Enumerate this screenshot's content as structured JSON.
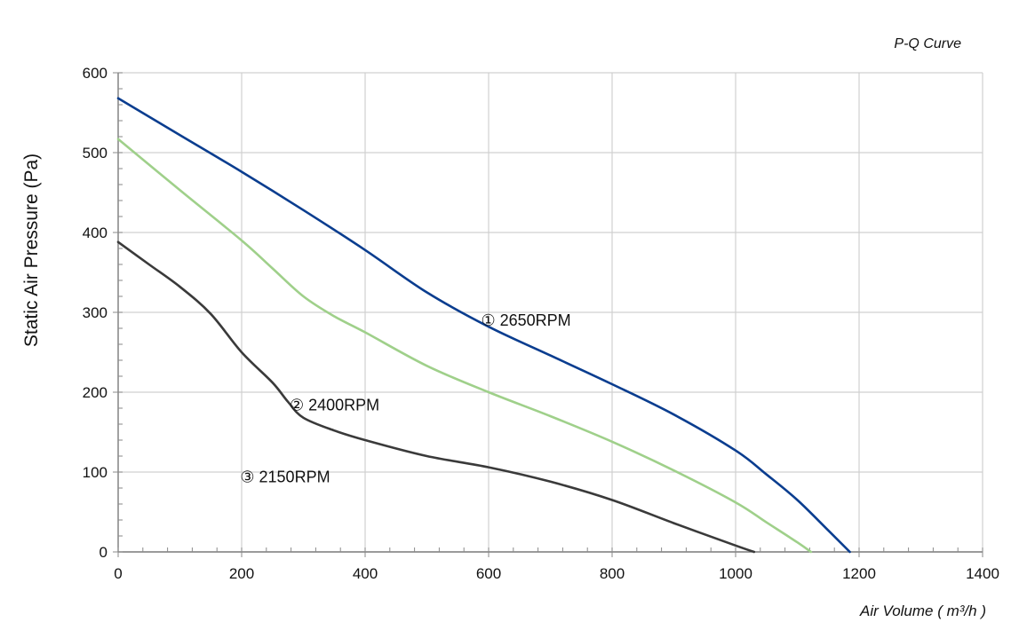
{
  "chart_data": {
    "type": "line",
    "title": "P-Q Curve",
    "xlabel": "Air Volume ( m³/h )",
    "ylabel": "Static Air Pressure  (Pa)",
    "xlim": [
      0,
      1400
    ],
    "ylim": [
      0,
      600
    ],
    "x_ticks": [
      0,
      200,
      400,
      600,
      800,
      1000,
      1200,
      1400
    ],
    "y_ticks": [
      0,
      100,
      200,
      300,
      400,
      500,
      600
    ],
    "x_tick_labels": [
      "0",
      "200",
      "400",
      "600",
      "800",
      "1000",
      "1200",
      "1400"
    ],
    "y_tick_labels": [
      "0",
      "100",
      "200",
      "300",
      "400",
      "500",
      "600"
    ],
    "grid": true,
    "legend": "none",
    "series": [
      {
        "color": "#0a3d8f",
        "x": [
          0,
          100,
          200,
          300,
          400,
          500,
          600,
          700,
          800,
          900,
          1000,
          1050,
          1100,
          1150,
          1185
        ],
        "y": [
          568,
          522,
          476,
          428,
          378,
          325,
          282,
          246,
          210,
          172,
          127,
          97,
          65,
          27,
          0
        ]
      },
      {
        "color": "#9fd08a",
        "x": [
          0,
          100,
          200,
          250,
          300,
          350,
          400,
          500,
          600,
          700,
          800,
          900,
          1000,
          1050,
          1100,
          1122
        ],
        "y": [
          517,
          453,
          390,
          355,
          320,
          295,
          275,
          233,
          200,
          170,
          138,
          102,
          62,
          37,
          12,
          0
        ]
      },
      {
        "color": "#3a3a3a",
        "x": [
          0,
          50,
          100,
          150,
          200,
          250,
          275,
          300,
          350,
          400,
          500,
          600,
          700,
          800,
          900,
          1000,
          1030
        ],
        "y": [
          388,
          360,
          332,
          298,
          250,
          212,
          188,
          168,
          152,
          140,
          120,
          106,
          88,
          65,
          36,
          8,
          0
        ]
      }
    ],
    "annotations": [
      {
        "text": "① 2650RPM",
        "x": 710,
        "y": 290
      },
      {
        "text": "② 2400RPM",
        "x": 400,
        "y": 184
      },
      {
        "text": "③ 2150RPM",
        "x": 320,
        "y": 94
      }
    ]
  }
}
